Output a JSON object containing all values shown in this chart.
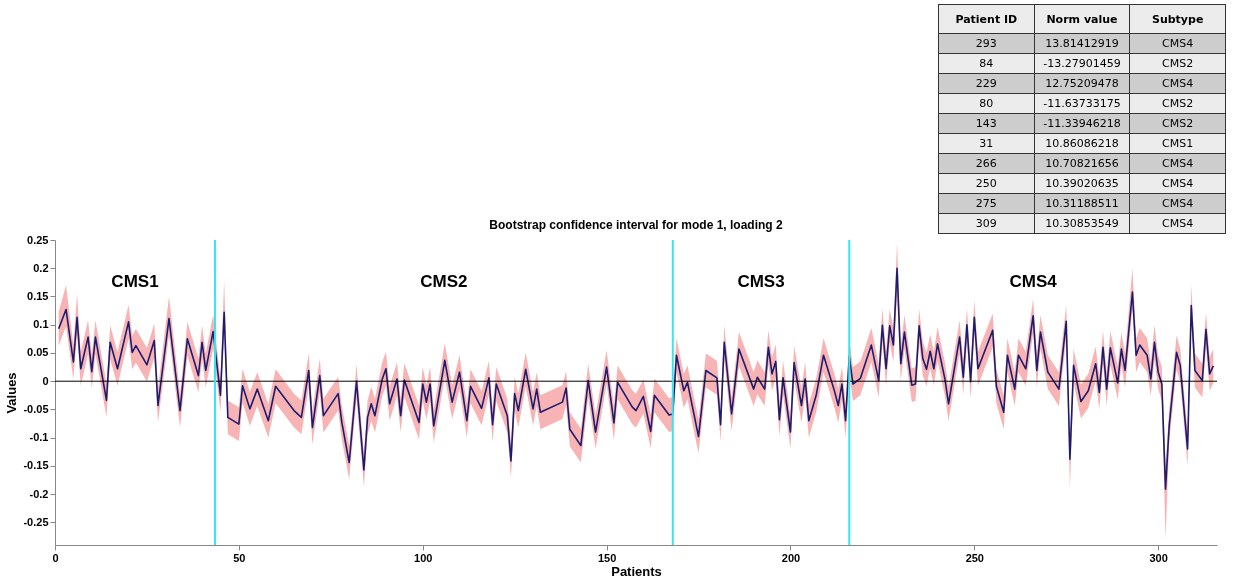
{
  "chart_data": [
    {
      "type": "line",
      "title": "Bootstrap confidence interval for mode 1, loading 2",
      "xlabel": "Patients",
      "ylabel": "Values",
      "xlim": [
        0,
        316
      ],
      "xticks": [
        0,
        50,
        100,
        150,
        200,
        250,
        300
      ],
      "ylim": [
        -0.29,
        0.25
      ],
      "yticks": [
        -0.25,
        -0.2,
        -0.15,
        -0.1,
        -0.05,
        0,
        0.05,
        0.1,
        0.15,
        0.2,
        0.25
      ],
      "grid": false,
      "series": [
        {
          "color": "#1c1c6e",
          "x": [
            1,
            3,
            5,
            6,
            7,
            9,
            10,
            11,
            14,
            15,
            17,
            20,
            21,
            22,
            25,
            27,
            28,
            31,
            34,
            36,
            39,
            40,
            41,
            43,
            45,
            46,
            47,
            50,
            51,
            53,
            55,
            58,
            60,
            65,
            67,
            69,
            70,
            72,
            73,
            77,
            78,
            80,
            82,
            84,
            85,
            86,
            87,
            89,
            90,
            91,
            93,
            94,
            95,
            99,
            100,
            101,
            102,
            103,
            106,
            108,
            110,
            112,
            113,
            116,
            118,
            119,
            120,
            123,
            124,
            125,
            126,
            128,
            130,
            131,
            132,
            138,
            139,
            140,
            143,
            145,
            147,
            150,
            152,
            153,
            157,
            158,
            160,
            162,
            163,
            167,
            168,
            169,
            171,
            172,
            175,
            177,
            180,
            181,
            182,
            184,
            186,
            190,
            191,
            193,
            194,
            195,
            196,
            197,
            198,
            200,
            201,
            203,
            204,
            205,
            207,
            209,
            212,
            213,
            214,
            215,
            216,
            217,
            219,
            222,
            224,
            225,
            226,
            227,
            228,
            229,
            230,
            231,
            233,
            234,
            235,
            236,
            237,
            238,
            239,
            240,
            242,
            243,
            246,
            247,
            248,
            249,
            250,
            251,
            255,
            256,
            258,
            259,
            261,
            262,
            264,
            266,
            267,
            268,
            270,
            273,
            275,
            276,
            277,
            279,
            281,
            283,
            284,
            285,
            286,
            287,
            289,
            290,
            291,
            293,
            294,
            295,
            297,
            298,
            299,
            300,
            301,
            302,
            303,
            305,
            306,
            308,
            309,
            310,
            312,
            313,
            314,
            315
          ],
          "values": [
            0.093,
            0.127,
            0.034,
            0.113,
            0.022,
            0.078,
            0.017,
            0.078,
            -0.034,
            0.069,
            0.022,
            0.105,
            0.051,
            0.063,
            0.029,
            0.072,
            -0.043,
            0.111,
            -0.052,
            0.075,
            0.01,
            0.069,
            0.019,
            0.088,
            -0.025,
            0.122,
            -0.064,
            -0.076,
            -0.008,
            -0.049,
            -0.014,
            -0.07,
            -0.009,
            -0.052,
            -0.064,
            0.019,
            -0.082,
            0.01,
            -0.061,
            -0.022,
            -0.073,
            -0.144,
            0.0,
            -0.157,
            -0.064,
            -0.04,
            -0.061,
            0.004,
            0.022,
            -0.04,
            0.004,
            -0.061,
            0.002,
            -0.073,
            -0.005,
            -0.037,
            -0.005,
            -0.079,
            0.037,
            -0.037,
            0.016,
            -0.07,
            -0.009,
            -0.048,
            0.006,
            -0.077,
            -0.005,
            -0.061,
            -0.141,
            -0.022,
            -0.052,
            0.021,
            -0.049,
            -0.014,
            -0.055,
            -0.037,
            -0.012,
            -0.085,
            -0.114,
            0.001,
            -0.09,
            0.025,
            -0.074,
            -0.002,
            -0.046,
            -0.052,
            -0.027,
            -0.089,
            -0.025,
            -0.06,
            -0.058,
            0.046,
            -0.017,
            -0.002,
            -0.098,
            0.019,
            0.006,
            -0.077,
            0.069,
            -0.058,
            0.057,
            -0.014,
            0.007,
            -0.014,
            0.06,
            0.013,
            0.035,
            -0.068,
            0.006,
            -0.09,
            0.033,
            -0.043,
            0.004,
            -0.07,
            -0.025,
            0.046,
            -0.018,
            -0.043,
            -0.005,
            -0.07,
            0.044,
            -0.005,
            0.005,
            0.064,
            0.001,
            0.099,
            0.022,
            0.098,
            0.064,
            0.2,
            0.031,
            0.087,
            -0.007,
            -0.005,
            0.098,
            0.04,
            0.021,
            0.053,
            0.022,
            0.066,
            0.004,
            -0.04,
            0.078,
            0.007,
            0.1,
            -0.001,
            0.113,
            0.022,
            0.09,
            -0.009,
            -0.055,
            0.046,
            -0.014,
            0.046,
            0.022,
            0.116,
            0.019,
            0.087,
            0.016,
            -0.014,
            0.106,
            -0.138,
            0.028,
            -0.036,
            -0.017,
            0.031,
            -0.02,
            0.06,
            -0.014,
            0.059,
            -0.003,
            0.057,
            0.019,
            0.158,
            0.046,
            0.064,
            0.046,
            0.004,
            0.069,
            0.016,
            -0.005,
            -0.191,
            -0.079,
            0.051,
            0.028,
            -0.12,
            0.134,
            0.019,
            0.001,
            0.092,
            0.013,
            0.027
          ],
          "upper": [
            0.123,
            0.17,
            0.064,
            0.155,
            0.052,
            0.108,
            0.047,
            0.108,
            -0.004,
            0.099,
            0.052,
            0.135,
            0.081,
            0.093,
            0.059,
            0.102,
            -0.013,
            0.15,
            -0.022,
            0.105,
            0.04,
            0.099,
            0.049,
            0.118,
            0.005,
            0.18,
            -0.034,
            -0.046,
            0.022,
            -0.019,
            0.016,
            -0.04,
            0.021,
            -0.022,
            -0.034,
            0.049,
            -0.052,
            0.04,
            -0.031,
            0.008,
            -0.043,
            -0.114,
            0.03,
            -0.127,
            -0.034,
            -0.01,
            -0.031,
            0.034,
            0.052,
            -0.01,
            0.034,
            -0.031,
            0.032,
            -0.043,
            0.025,
            -0.007,
            0.025,
            -0.049,
            0.067,
            -0.007,
            0.046,
            -0.04,
            0.021,
            -0.018,
            0.036,
            -0.047,
            0.025,
            -0.031,
            -0.111,
            0.008,
            -0.022,
            0.051,
            -0.019,
            0.016,
            -0.025,
            -0.007,
            0.018,
            -0.055,
            -0.084,
            0.031,
            -0.06,
            0.055,
            -0.044,
            0.028,
            -0.016,
            -0.022,
            0.003,
            -0.059,
            0.005,
            -0.03,
            -0.028,
            0.076,
            0.013,
            0.028,
            -0.068,
            0.049,
            0.036,
            -0.047,
            0.099,
            -0.028,
            0.087,
            0.016,
            0.037,
            0.016,
            0.09,
            0.043,
            0.065,
            -0.038,
            0.036,
            -0.06,
            0.063,
            -0.013,
            0.034,
            -0.04,
            0.005,
            0.076,
            0.012,
            -0.013,
            0.025,
            -0.04,
            0.074,
            0.025,
            0.035,
            0.094,
            0.031,
            0.129,
            0.052,
            0.128,
            0.094,
            0.245,
            0.061,
            0.117,
            0.023,
            0.025,
            0.128,
            0.07,
            0.051,
            0.083,
            0.052,
            0.096,
            0.034,
            -0.01,
            0.108,
            0.037,
            0.13,
            0.029,
            0.143,
            0.052,
            0.12,
            0.021,
            -0.025,
            0.076,
            0.016,
            0.076,
            0.052,
            0.146,
            0.049,
            0.117,
            0.046,
            0.016,
            0.136,
            -0.108,
            0.058,
            -0.006,
            0.013,
            0.061,
            0.01,
            0.09,
            0.016,
            0.089,
            0.027,
            0.087,
            0.049,
            0.2,
            0.076,
            0.094,
            0.076,
            0.034,
            0.099,
            0.046,
            0.025,
            -0.15,
            -0.049,
            0.081,
            0.058,
            -0.09,
            0.17,
            0.049,
            0.031,
            0.122,
            0.043,
            0.057
          ],
          "lower": [
            0.063,
            0.097,
            0.004,
            0.083,
            -0.008,
            0.048,
            -0.013,
            0.048,
            -0.064,
            0.039,
            -0.008,
            0.075,
            0.021,
            0.033,
            -0.001,
            0.042,
            -0.073,
            0.081,
            -0.082,
            0.045,
            -0.02,
            0.039,
            -0.011,
            0.058,
            -0.055,
            0.092,
            -0.094,
            -0.106,
            -0.038,
            -0.079,
            -0.044,
            -0.1,
            -0.039,
            -0.082,
            -0.094,
            -0.011,
            -0.112,
            -0.02,
            -0.091,
            -0.052,
            -0.103,
            -0.174,
            -0.03,
            -0.187,
            -0.094,
            -0.07,
            -0.091,
            -0.026,
            -0.008,
            -0.07,
            -0.026,
            -0.091,
            -0.028,
            -0.103,
            -0.035,
            -0.067,
            -0.035,
            -0.109,
            0.007,
            -0.067,
            -0.014,
            -0.1,
            -0.039,
            -0.078,
            -0.024,
            -0.107,
            -0.035,
            -0.091,
            -0.171,
            -0.052,
            -0.082,
            -0.009,
            -0.079,
            -0.044,
            -0.085,
            -0.067,
            -0.042,
            -0.115,
            -0.144,
            -0.029,
            -0.12,
            -0.005,
            -0.104,
            -0.032,
            -0.076,
            -0.082,
            -0.057,
            -0.119,
            -0.055,
            -0.09,
            -0.088,
            0.016,
            -0.047,
            -0.032,
            -0.128,
            -0.011,
            -0.024,
            -0.107,
            0.039,
            -0.088,
            0.027,
            -0.044,
            -0.023,
            -0.044,
            0.03,
            -0.017,
            0.005,
            -0.098,
            -0.024,
            -0.12,
            0.003,
            -0.073,
            -0.026,
            -0.1,
            -0.055,
            0.016,
            -0.048,
            -0.073,
            -0.035,
            -0.1,
            0.014,
            -0.035,
            -0.025,
            0.034,
            -0.029,
            0.069,
            -0.008,
            0.068,
            0.034,
            0.155,
            0.001,
            0.057,
            -0.037,
            -0.035,
            0.068,
            0.01,
            -0.009,
            0.023,
            -0.008,
            0.036,
            -0.026,
            -0.07,
            0.048,
            -0.023,
            0.07,
            -0.031,
            0.083,
            -0.008,
            0.06,
            -0.039,
            -0.085,
            0.016,
            -0.044,
            0.016,
            -0.008,
            0.086,
            -0.011,
            0.057,
            -0.014,
            -0.044,
            0.076,
            -0.19,
            -0.002,
            -0.066,
            -0.047,
            0.001,
            -0.05,
            0.03,
            -0.044,
            0.029,
            -0.033,
            0.027,
            -0.011,
            0.128,
            0.016,
            0.034,
            0.016,
            -0.026,
            0.039,
            -0.014,
            -0.035,
            -0.28,
            -0.109,
            0.021,
            -0.002,
            -0.15,
            0.104,
            -0.011,
            -0.029,
            0.062,
            -0.017,
            -0.003
          ]
        }
      ],
      "ref_lines": [
        {
          "axis": "y",
          "value": 0,
          "color": "#000000"
        },
        {
          "axis": "x",
          "value": 43.5,
          "color": "#33e6f0"
        },
        {
          "axis": "x",
          "value": 168,
          "color": "#33e6f0"
        },
        {
          "axis": "x",
          "value": 216,
          "color": "#33e6f0"
        }
      ],
      "annotations": [
        "CMS1",
        "CMS2",
        "CMS3",
        "CMS4"
      ]
    },
    {
      "type": "other",
      "categories": [
        "Patient ID",
        "Norm value",
        "Subtype"
      ],
      "cell_labels": [
        [
          "293",
          "13.81412919",
          "CMS4"
        ],
        [
          "84",
          "-13.27901459",
          "CMS2"
        ],
        [
          "229",
          "12.75209478",
          "CMS4"
        ],
        [
          "80",
          "-11.63733175",
          "CMS2"
        ],
        [
          "143",
          "-11.33946218",
          "CMS2"
        ],
        [
          "31",
          "10.86086218",
          "CMS1"
        ],
        [
          "266",
          "10.70821656",
          "CMS4"
        ],
        [
          "250",
          "10.39020635",
          "CMS4"
        ],
        [
          "275",
          "10.31188511",
          "CMS4"
        ],
        [
          "309",
          "10.30853549",
          "CMS4"
        ]
      ]
    }
  ]
}
